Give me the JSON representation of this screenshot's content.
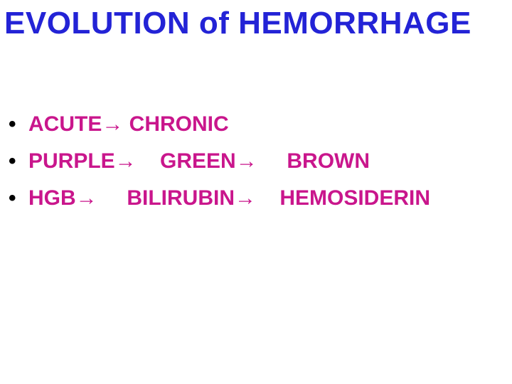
{
  "slide": {
    "title": "EVOLUTION of HEMORRHAGE",
    "title_color": "#2323d6",
    "title_fontsize": 44,
    "bullets": [
      {
        "text": "ACUTE→ CHRONIC"
      },
      {
        "text": "PURPLE→    GREEN→     BROWN"
      },
      {
        "text": "HGB→     BILIRUBIN→    HEMOSIDERIN"
      }
    ],
    "bullet_dot_color": "#000000",
    "bullet_text_color": "#c9168c",
    "bullet_fontsize": 30,
    "line_height": 44,
    "background_color": "#ffffff"
  }
}
